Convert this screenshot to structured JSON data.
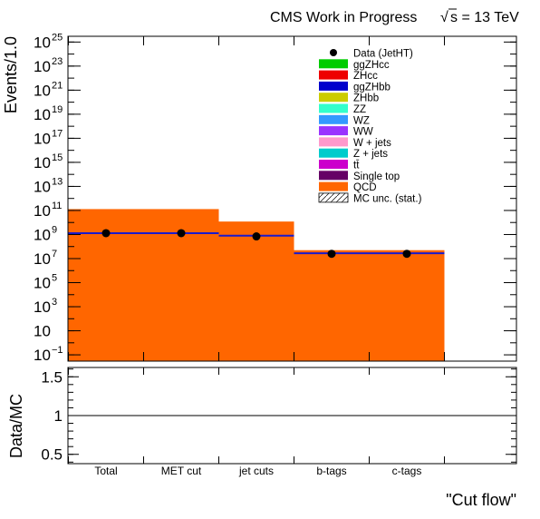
{
  "header": {
    "left": "CMS Work in Progress",
    "sqrt_symbol": "√",
    "right": "s = 13 TeV"
  },
  "chart_data": [
    {
      "type": "bar",
      "ylabel": "Events/1.0",
      "yscale": "log",
      "ylim": [
        0.03,
        3e+25
      ],
      "categories": [
        "Total",
        "MET cut",
        "jet cuts",
        "b-tags",
        "c-tags"
      ],
      "y_ticks": [
        {
          "value": 0.1,
          "base": "10",
          "exp": "−1"
        },
        {
          "value": 10,
          "base": "10",
          "exp": ""
        },
        {
          "value": 1000,
          "base": "10",
          "exp": "3"
        },
        {
          "value": 100000,
          "base": "10",
          "exp": "5"
        },
        {
          "value": 10000000.0,
          "base": "10",
          "exp": "7"
        },
        {
          "value": 1000000000.0,
          "base": "10",
          "exp": "9"
        },
        {
          "value": 100000000000.0,
          "base": "10",
          "exp": "11"
        },
        {
          "value": 10000000000000.0,
          "base": "10",
          "exp": "13"
        },
        {
          "value": 1000000000000000.0,
          "base": "10",
          "exp": "15"
        },
        {
          "value": 1e+17,
          "base": "10",
          "exp": "17"
        },
        {
          "value": 1e+19,
          "base": "10",
          "exp": "19"
        },
        {
          "value": 1e+21,
          "base": "10",
          "exp": "21"
        },
        {
          "value": 1e+23,
          "base": "10",
          "exp": "23"
        },
        {
          "value": 1e+25,
          "base": "10",
          "exp": "25"
        }
      ],
      "series": [
        {
          "name": "QCD",
          "kind": "stack",
          "color": "#ff6600",
          "values": [
            130000000000.0,
            130000000000.0,
            12000000000.0,
            50000000.0,
            50000000.0
          ]
        },
        {
          "name": "Data (JetHT)",
          "kind": "points",
          "color": "#000000",
          "values": [
            1300000000.0,
            1300000000.0,
            700000000.0,
            25000000.0,
            25000000.0
          ]
        },
        {
          "name": "MC unc. (stat.)",
          "kind": "line",
          "color": "#1a1acc",
          "values": [
            1300000000.0,
            1300000000.0,
            800000000.0,
            28000000.0,
            28000000.0
          ]
        }
      ],
      "legend": {
        "placement": "top-right",
        "entries": [
          {
            "label": "Data (JetHT)",
            "color": "#000000",
            "marker": "point"
          },
          {
            "label": "ggZHcc",
            "color": "#00cc00",
            "marker": "box"
          },
          {
            "label": "ZHcc",
            "color": "#ee0000",
            "marker": "box"
          },
          {
            "label": "ggZHbb",
            "color": "#0000cc",
            "marker": "box"
          },
          {
            "label": "ZHbb",
            "color": "#cccc00",
            "marker": "box"
          },
          {
            "label": "ZZ",
            "color": "#33ffcc",
            "marker": "box"
          },
          {
            "label": "WZ",
            "color": "#3399ff",
            "marker": "box"
          },
          {
            "label": "WW",
            "color": "#9933ff",
            "marker": "box"
          },
          {
            "label": "W + jets",
            "color": "#ff99cc",
            "marker": "box"
          },
          {
            "label": "Z + jets",
            "color": "#00cccc",
            "marker": "box"
          },
          {
            "label": "tt̄",
            "color": "#cc00cc",
            "marker": "box"
          },
          {
            "label": "Single top",
            "color": "#660066",
            "marker": "box"
          },
          {
            "label": "QCD",
            "color": "#ff6600",
            "marker": "box"
          },
          {
            "label": "MC unc. (stat.)",
            "color": "#000000",
            "marker": "hatch"
          }
        ]
      }
    },
    {
      "type": "line",
      "ylabel": "Data/MC",
      "xlabel": "\"Cut flow\"",
      "ylim": [
        0.38,
        1.62
      ],
      "y_ticks": [
        {
          "value": 0.5,
          "label": "0.5"
        },
        {
          "value": 1,
          "label": "1"
        },
        {
          "value": 1.5,
          "label": "1.5"
        }
      ],
      "reference_line": 1
    }
  ]
}
